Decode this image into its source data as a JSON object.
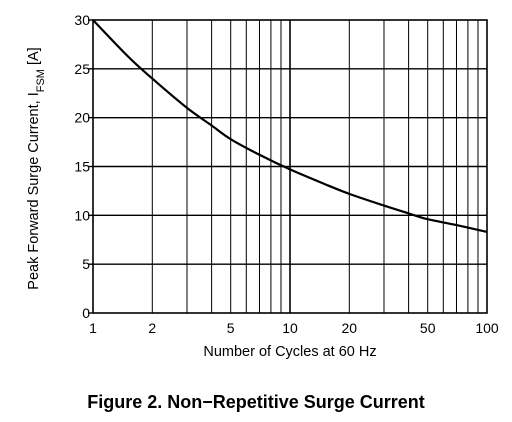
{
  "figure_caption": "Figure 2. Non−Repetitive Surge Current",
  "chart_data": {
    "type": "line",
    "title": "",
    "xlabel": "Number of Cycles at 60 Hz",
    "ylabel_main": "Peak Forward Surge Current, I",
    "ylabel_sub": "FSM",
    "ylabel_unit": " [A]",
    "xscale": "log",
    "xlim": [
      1,
      100
    ],
    "ylim": [
      0,
      30
    ],
    "grid": true,
    "x_ticks": [
      1,
      2,
      5,
      10,
      20,
      50,
      100
    ],
    "x_tick_labels": [
      "1",
      "2",
      "5",
      "10",
      "20",
      "50",
      "100"
    ],
    "y_ticks": [
      0,
      5,
      10,
      15,
      20,
      25,
      30
    ],
    "y_tick_labels": [
      "0",
      "5",
      "10",
      "15",
      "20",
      "25",
      "30"
    ],
    "series": [
      {
        "color": "#000000",
        "x": [
          1,
          1.5,
          2,
          3,
          4,
          5,
          7,
          10,
          15,
          20,
          30,
          40,
          50,
          70,
          100
        ],
        "y": [
          30,
          26.3,
          24,
          21,
          19.2,
          17.8,
          16.2,
          14.7,
          13.2,
          12.2,
          11.0,
          10.2,
          9.6,
          9.0,
          8.3
        ]
      }
    ]
  }
}
